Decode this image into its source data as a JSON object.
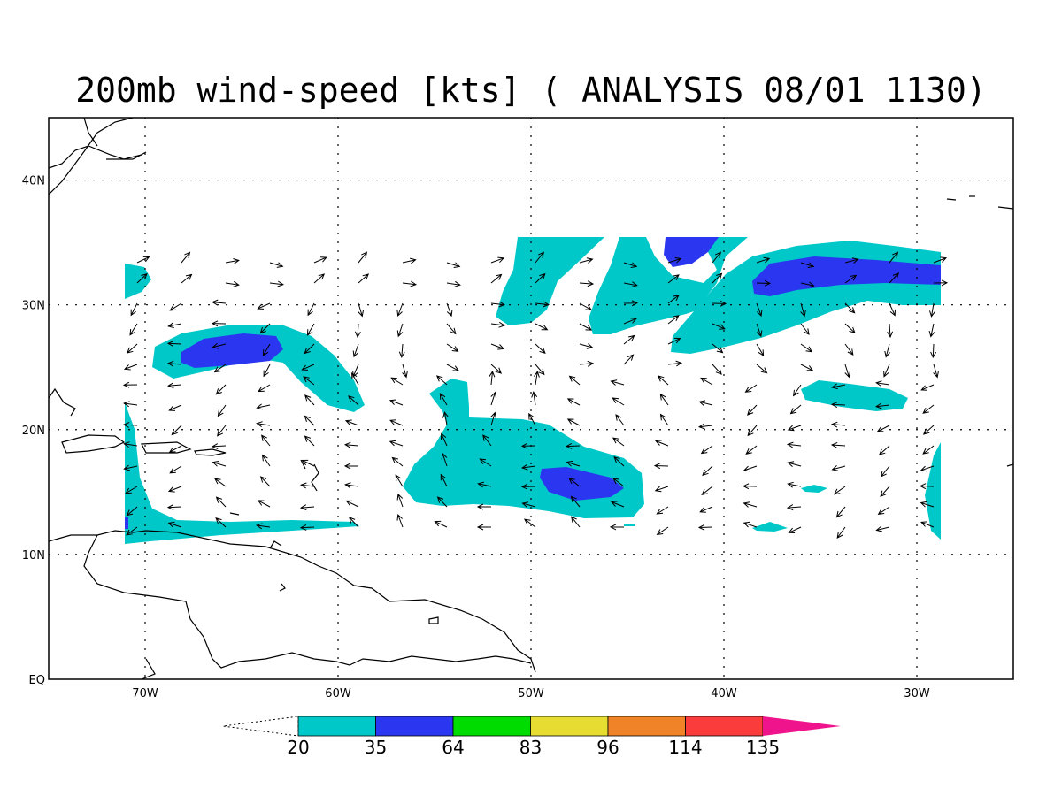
{
  "title": "200mb wind-speed [kts] ( ANALYSIS 08/01 1130)",
  "map": {
    "lon_range": [
      -75,
      -25
    ],
    "lat_range": [
      0,
      45
    ],
    "lon_ticks": [
      {
        "value": -70,
        "label": "70W"
      },
      {
        "value": -60,
        "label": "60W"
      },
      {
        "value": -50,
        "label": "50W"
      },
      {
        "value": -40,
        "label": "40W"
      },
      {
        "value": -30,
        "label": "30W"
      }
    ],
    "lat_ticks": [
      {
        "value": 0,
        "label": "EQ"
      },
      {
        "value": 10,
        "label": "10N"
      },
      {
        "value": 20,
        "label": "20N"
      },
      {
        "value": 30,
        "label": "30N"
      },
      {
        "value": 40,
        "label": "40N"
      }
    ],
    "grid": "dotted"
  },
  "colorbar": {
    "levels": [
      "20",
      "35",
      "64",
      "83",
      "96",
      "114",
      "135"
    ],
    "colors": [
      "#00c8c8",
      "#2a36f0",
      "#00dc00",
      "#e6dc32",
      "#f08228",
      "#fa3c3c",
      "#f0148c"
    ]
  },
  "wind_field": {
    "contour_colors": {
      "ge20": "#00c8c8",
      "ge35": "#2a36f0"
    }
  }
}
